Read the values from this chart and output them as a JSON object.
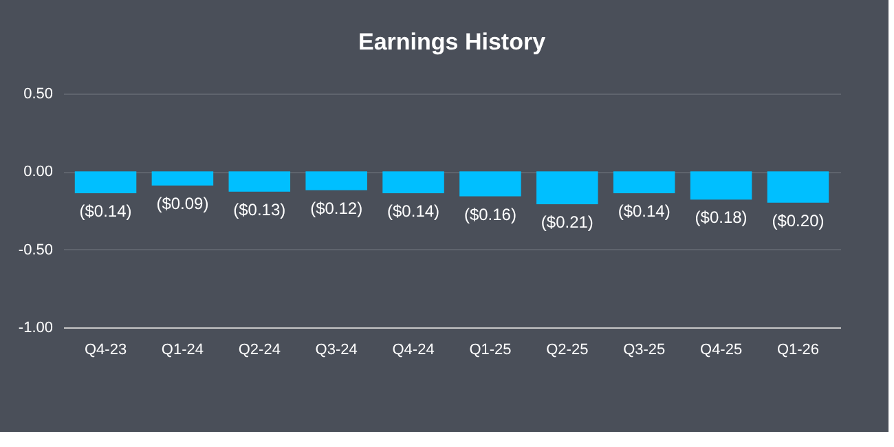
{
  "chart_data": {
    "type": "bar",
    "title": "Earnings History",
    "categories": [
      "Q4-23",
      "Q1-24",
      "Q2-24",
      "Q3-24",
      "Q4-24",
      "Q1-25",
      "Q2-25",
      "Q3-25",
      "Q4-25",
      "Q1-26"
    ],
    "values": [
      -0.14,
      -0.09,
      -0.13,
      -0.12,
      -0.14,
      -0.16,
      -0.21,
      -0.14,
      -0.18,
      -0.2
    ],
    "value_labels": [
      "($0.14)",
      "($0.09)",
      "($0.13)",
      "($0.12)",
      "($0.14)",
      "($0.16)",
      "($0.21)",
      "($0.14)",
      "($0.18)",
      "($0.20)"
    ],
    "color": "#00bfff",
    "ylim": [
      -1.0,
      0.5
    ],
    "yticks": [
      {
        "value": 0.5,
        "label": "0.50"
      },
      {
        "value": 0.0,
        "label": "0.00"
      },
      {
        "value": -0.5,
        "label": "-0.50"
      },
      {
        "value": -1.0,
        "label": "-1.00"
      }
    ],
    "grid": "y"
  }
}
